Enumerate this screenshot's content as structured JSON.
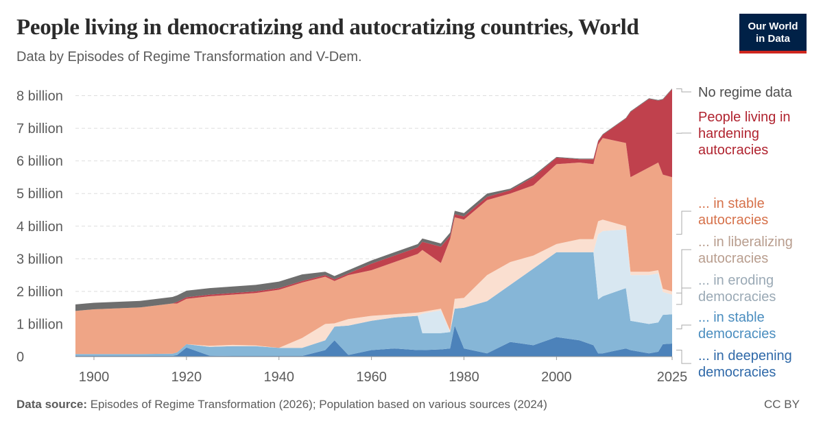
{
  "header": {
    "title": "People living in democratizing and autocratizing countries, World",
    "subtitle": "Data by Episodes of Regime Transformation and V-Dem."
  },
  "logo": {
    "line1": "Our World",
    "line2": "in Data"
  },
  "footer": {
    "source_label": "Data source:",
    "source_text": "Episodes of Regime Transformation (2026); Population based on various sources (2024)",
    "license": "CC BY"
  },
  "colors": {
    "deepening_democracies": "#4c82ba",
    "stable_democracies": "#86b6d7",
    "eroding_democracies": "#d8e7f1",
    "liberalizing_autocracies": "#fadfd0",
    "stable_autocracies": "#efa586",
    "hardening_autocracies": "#c0414d",
    "no_regime_data": "#6e6e6e",
    "grid": "#dddddd",
    "axis_text": "#5b5b5b"
  },
  "chart_data": {
    "type": "area",
    "stacked": true,
    "ylim": [
      0,
      8.2
    ],
    "yunit": "billion",
    "xlim": [
      1896,
      2025
    ],
    "x_ticks": [
      "1900",
      "1920",
      "1940",
      "1960",
      "1980",
      "2000",
      "2025"
    ],
    "y_ticks": [
      "0",
      "1 billion",
      "2 billion",
      "3 billion",
      "4 billion",
      "5 billion",
      "6 billion",
      "7 billion",
      "8 billion"
    ],
    "grid": "horizontal dashed",
    "legend_placement": "right",
    "x": [
      1896,
      1900,
      1910,
      1917,
      1918,
      1920,
      1925,
      1930,
      1935,
      1940,
      1945,
      1950,
      1952,
      1955,
      1960,
      1965,
      1970,
      1971,
      1975,
      1977,
      1978,
      1980,
      1985,
      1990,
      1995,
      2000,
      2005,
      2008,
      2009,
      2010,
      2015,
      2016,
      2020,
      2022,
      2023,
      2025
    ],
    "series": [
      {
        "name": "... in deepening democracies",
        "key": "deepening_democracies",
        "values": [
          0.02,
          0.02,
          0.02,
          0.02,
          0.05,
          0.28,
          0.03,
          0.02,
          0.02,
          0.02,
          0.02,
          0.2,
          0.5,
          0.05,
          0.2,
          0.25,
          0.2,
          0.2,
          0.22,
          0.25,
          0.95,
          0.25,
          0.1,
          0.45,
          0.35,
          0.6,
          0.5,
          0.35,
          0.1,
          0.1,
          0.25,
          0.2,
          0.1,
          0.15,
          0.38,
          0.4
        ]
      },
      {
        "name": "... in stable democracies",
        "key": "stable_democracies",
        "values": [
          0.06,
          0.06,
          0.06,
          0.07,
          0.08,
          0.1,
          0.27,
          0.3,
          0.3,
          0.25,
          0.25,
          0.3,
          0.42,
          0.9,
          0.9,
          0.95,
          1.05,
          0.52,
          0.5,
          0.5,
          0.52,
          1.25,
          1.6,
          1.75,
          2.35,
          2.6,
          2.7,
          2.85,
          1.65,
          1.75,
          1.85,
          0.9,
          0.9,
          0.9,
          0.9,
          0.9
        ]
      },
      {
        "name": "... in eroding democracies",
        "key": "eroding_democracies",
        "values": [
          0,
          0,
          0,
          0,
          0,
          0,
          0,
          0,
          0,
          0,
          0,
          0,
          0,
          0,
          0,
          0,
          0,
          0.6,
          0.7,
          0,
          0,
          0,
          0,
          0,
          0,
          0,
          0,
          0,
          2,
          2,
          1.8,
          1.4,
          1.5,
          1.5,
          0.7,
          0.6
        ]
      },
      {
        "name": "... in liberalizing autocracies",
        "key": "liberalizing_autocracies",
        "values": [
          0,
          0,
          0,
          0,
          0,
          0,
          0.03,
          0.04,
          0.02,
          0,
          0.3,
          0.5,
          0.1,
          0.2,
          0.15,
          0.1,
          0.1,
          0.05,
          0.05,
          0.05,
          0.3,
          0.3,
          0.8,
          0.7,
          0.4,
          0.25,
          0.4,
          0.4,
          0.4,
          0.35,
          0.1,
          0.1,
          0.1,
          0.1,
          0.1,
          0.1
        ]
      },
      {
        "name": "... in stable autocracies",
        "key": "stable_autocracies",
        "values": [
          1.32,
          1.37,
          1.43,
          1.54,
          1.5,
          1.39,
          1.52,
          1.54,
          1.61,
          1.78,
          1.7,
          1.45,
          1.3,
          1.35,
          1.4,
          1.6,
          1.8,
          1.9,
          1.4,
          2.8,
          2.5,
          2.4,
          2.3,
          2.1,
          2.15,
          2.45,
          2.35,
          2.3,
          2.35,
          2.5,
          2.55,
          2.9,
          3.2,
          3.3,
          3.5,
          3.5
        ]
      },
      {
        "name": "People living in hardening autocracies",
        "key": "hardening_autocracies",
        "values": [
          0,
          0,
          0,
          0,
          0.05,
          0.05,
          0.05,
          0.05,
          0.05,
          0.05,
          0.05,
          0.05,
          0.05,
          0.05,
          0.2,
          0.2,
          0.2,
          0.25,
          0.5,
          0.1,
          0.1,
          0.1,
          0.1,
          0.1,
          0.25,
          0.2,
          0.1,
          0.15,
          0.1,
          0.1,
          0.75,
          2,
          2.1,
          1.9,
          2.3,
          2.7
        ]
      },
      {
        "name": "No regime data",
        "key": "no_regime_data",
        "values": [
          0.2,
          0.2,
          0.2,
          0.2,
          0.2,
          0.2,
          0.2,
          0.2,
          0.2,
          0.2,
          0.2,
          0.1,
          0.1,
          0.1,
          0.1,
          0.1,
          0.1,
          0.1,
          0.1,
          0.1,
          0.1,
          0.1,
          0.1,
          0.05,
          0.05,
          0.02,
          0.02,
          0.02,
          0.02,
          0.02,
          0.02,
          0.02,
          0.02,
          0.02,
          0.02,
          0.02
        ]
      }
    ],
    "legend": [
      {
        "key": "no_regime_data",
        "lines": [
          "No regime data"
        ]
      },
      {
        "key": "hardening_autocracies",
        "lines": [
          "People living in",
          "hardening",
          "autocracies"
        ]
      },
      {
        "key": "stable_autocracies",
        "lines": [
          "... in stable",
          "autocracies"
        ]
      },
      {
        "key": "liberalizing_autocracies",
        "lines": [
          "... in liberalizing",
          "autocracies"
        ]
      },
      {
        "key": "eroding_democracies",
        "lines": [
          "... in eroding",
          "democracies"
        ]
      },
      {
        "key": "stable_democracies",
        "lines": [
          "... in stable",
          "democracies"
        ]
      },
      {
        "key": "deepening_democracies",
        "lines": [
          "... in deepening",
          "democracies"
        ]
      }
    ]
  }
}
